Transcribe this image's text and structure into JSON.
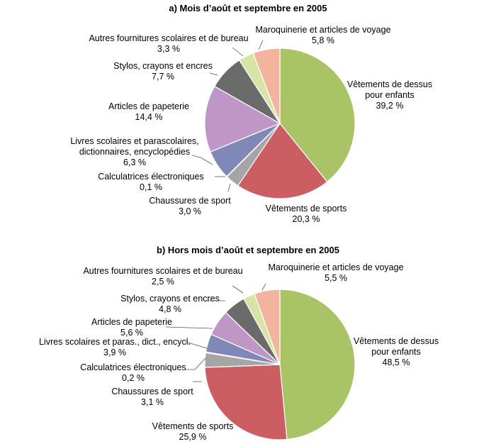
{
  "colors": {
    "Vêtements de dessus pour enfants": "#a9c466",
    "Vêtements de sports": "#cc5d62",
    "Chaussures de sport": "#a5a5a5",
    "Calculatrices électroniques": "#e4a07c",
    "Livres": "#8088b8",
    "Articles de papeterie": "#be97c6",
    "Stylos, crayons et encres": "#6b6b6b",
    "Autres fournitures scolaires et de bureau": "#d6e4a6",
    "Maroquinerie et articles de voyage": "#f2b49c"
  },
  "chart_data": [
    {
      "type": "pie",
      "title": "a) Mois d’août et septembre en 2005",
      "slices": [
        {
          "label": "Vêtements de dessus pour enfants",
          "lines": [
            "Vêtements de dessus",
            "pour enfants"
          ],
          "value": 39.2,
          "value_label": "39,2 %",
          "color": "#a9c466"
        },
        {
          "label": "Vêtements de sports",
          "lines": [
            "Vêtements de sports"
          ],
          "value": 20.3,
          "value_label": "20,3 %",
          "color": "#cc5d62"
        },
        {
          "label": "Chaussures de sport",
          "lines": [
            "Chaussures de sport"
          ],
          "value": 3.0,
          "value_label": "3,0 %",
          "color": "#a5a5a5"
        },
        {
          "label": "Calculatrices électroniques",
          "lines": [
            "Calculatrices électroniques"
          ],
          "value": 0.1,
          "value_label": "0,1 %",
          "color": "#e4a07c"
        },
        {
          "label": "Livres scolaires et parascolaires, dictionnaires, encyclopédies",
          "lines": [
            "Livres scolaires et parascolaires,",
            "dictionnaires, encyclopédies"
          ],
          "value": 6.3,
          "value_label": "6,3 %",
          "color": "#8088b8"
        },
        {
          "label": "Articles de papeterie",
          "lines": [
            "Articles de papeterie"
          ],
          "value": 14.4,
          "value_label": "14,4 %",
          "color": "#be97c6"
        },
        {
          "label": "Stylos, crayons et encres",
          "lines": [
            "Stylos, crayons et encres"
          ],
          "value": 7.7,
          "value_label": "7,7 %",
          "color": "#6b6b6b"
        },
        {
          "label": "Autres fournitures scolaires et de bureau",
          "lines": [
            "Autres fournitures scolaires et de bureau"
          ],
          "value": 3.3,
          "value_label": "3,3 %",
          "color": "#d6e4a6"
        },
        {
          "label": "Maroquinerie et articles de voyage",
          "lines": [
            "Maroquinerie et articles de voyage"
          ],
          "value": 5.8,
          "value_label": "5,8 %",
          "color": "#f2b49c"
        }
      ]
    },
    {
      "type": "pie",
      "title": "b) Hors mois d’août et septembre en 2005",
      "slices": [
        {
          "label": "Vêtements de dessus pour enfants",
          "lines": [
            "Vêtements de dessus",
            "pour enfants"
          ],
          "value": 48.5,
          "value_label": "48,5 %",
          "color": "#a9c466"
        },
        {
          "label": "Vêtements de sports",
          "lines": [
            "Vêtements de sports"
          ],
          "value": 25.9,
          "value_label": "25,9 %",
          "color": "#cc5d62"
        },
        {
          "label": "Chaussures de sport",
          "lines": [
            "Chaussures de sport"
          ],
          "value": 3.1,
          "value_label": "3,1 %",
          "color": "#a5a5a5"
        },
        {
          "label": "Calculatrices électroniques",
          "lines": [
            "Calculatrices électroniques"
          ],
          "value": 0.2,
          "value_label": "0,2 %",
          "color": "#e4a07c"
        },
        {
          "label": "Livres scolaires et paras., dict., encycl.",
          "lines": [
            "Livres scolaires et paras., dict., encycl."
          ],
          "value": 3.9,
          "value_label": "3,9 %",
          "color": "#8088b8"
        },
        {
          "label": "Articles de papeterie",
          "lines": [
            "Articles de papeterie"
          ],
          "value": 5.6,
          "value_label": "5,6 %",
          "color": "#be97c6"
        },
        {
          "label": "Stylos, crayons et encres",
          "lines": [
            "Stylos, crayons et encres"
          ],
          "value": 4.8,
          "value_label": "4,8 %",
          "color": "#6b6b6b"
        },
        {
          "label": "Autres fournitures scolaires et de bureau",
          "lines": [
            "Autres fournitures scolaires et de bureau"
          ],
          "value": 2.5,
          "value_label": "2,5 %",
          "color": "#d6e4a6"
        },
        {
          "label": "Maroquinerie et articles de voyage",
          "lines": [
            "Maroquinerie et articles de voyage"
          ],
          "value": 5.5,
          "value_label": "5,5 %",
          "color": "#f2b49c"
        }
      ]
    }
  ]
}
